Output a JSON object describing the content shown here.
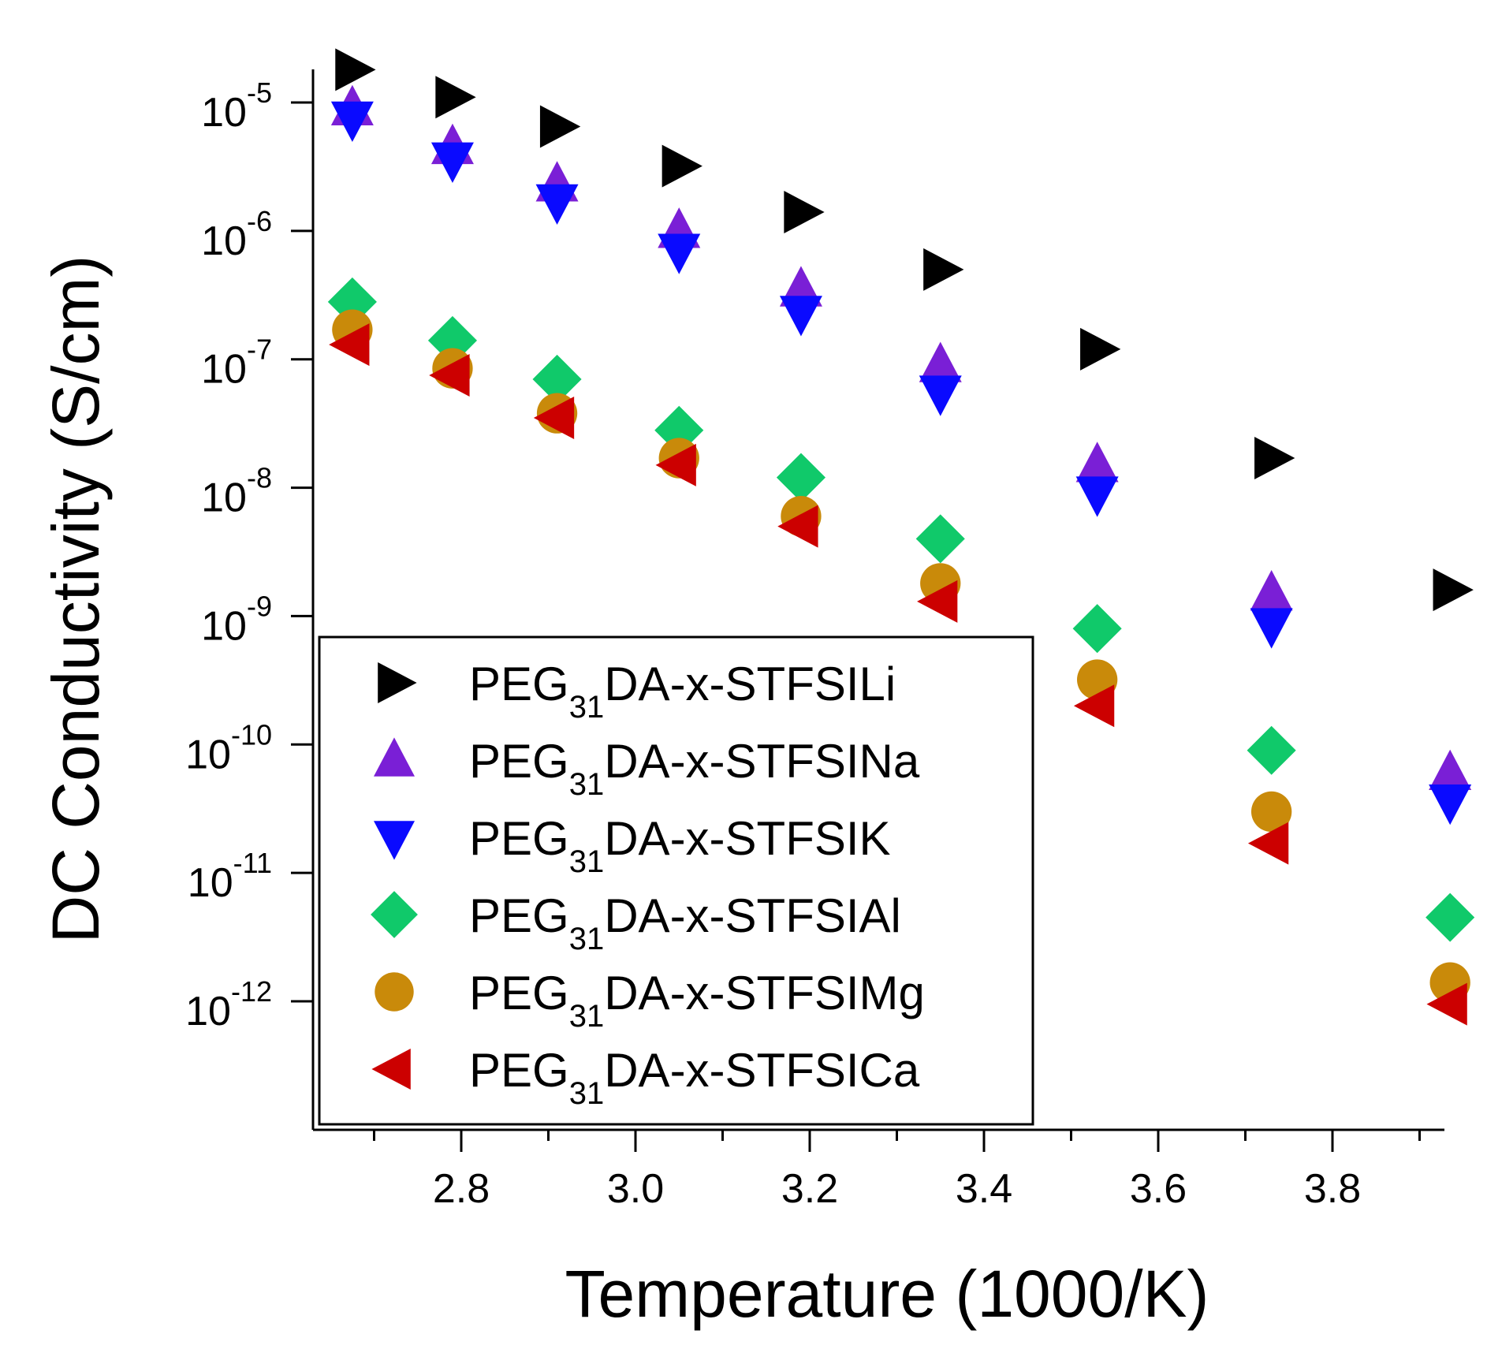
{
  "chart_data": {
    "type": "scatter",
    "xlabel": "Temperature (1000/K)",
    "ylabel": "DC Conductivity (S/cm)",
    "xlim": [
      2.65,
      3.95
    ],
    "ylim": [
      1e-13,
      2e-05
    ],
    "yscale": "log",
    "x_ticks": [
      {
        "value": 2.8,
        "label": "2.8"
      },
      {
        "value": 3.0,
        "label": "3.0"
      },
      {
        "value": 3.2,
        "label": "3.2"
      },
      {
        "value": 3.4,
        "label": "3.4"
      },
      {
        "value": 3.6,
        "label": "3.6"
      },
      {
        "value": 3.8,
        "label": "3.8"
      }
    ],
    "y_ticks": [
      {
        "value": 1e-05,
        "base": "10",
        "exp": "-5"
      },
      {
        "value": 1e-06,
        "base": "10",
        "exp": "-6"
      },
      {
        "value": 1e-07,
        "base": "10",
        "exp": "-7"
      },
      {
        "value": 1e-08,
        "base": "10",
        "exp": "-8"
      },
      {
        "value": 1e-09,
        "base": "10",
        "exp": "-9"
      },
      {
        "value": 1e-10,
        "base": "10",
        "exp": "-10"
      },
      {
        "value": 1e-11,
        "base": "10",
        "exp": "-11"
      },
      {
        "value": 1e-12,
        "base": "10",
        "exp": "-12"
      }
    ],
    "grid": false,
    "legend": {
      "placement": "lower-left",
      "entries": [
        {
          "pre": "PEG",
          "sub": "31",
          "post": "DA-x-STFSILi"
        },
        {
          "pre": "PEG",
          "sub": "31",
          "post": "DA-x-STFSINa"
        },
        {
          "pre": "PEG",
          "sub": "31",
          "post": "DA-x-STFSIK"
        },
        {
          "pre": "PEG",
          "sub": "31",
          "post": "DA-x-STFSIAl"
        },
        {
          "pre": "PEG",
          "sub": "31",
          "post": "DA-x-STFSIMg"
        },
        {
          "pre": "PEG",
          "sub": "31",
          "post": "DA-x-STFSICa"
        }
      ]
    },
    "x": [
      2.675,
      2.79,
      2.91,
      3.05,
      3.19,
      3.35,
      3.53,
      3.73,
      3.935
    ],
    "series": [
      {
        "name": "PEG31DA-x-STFSILi",
        "marker": "triangle-right",
        "color": "#000000",
        "values": [
          1.8e-05,
          1.1e-05,
          6.5e-06,
          3.2e-06,
          1.4e-06,
          5e-07,
          1.2e-07,
          1.7e-08,
          1.6e-09
        ]
      },
      {
        "name": "PEG31DA-x-STFSINa",
        "marker": "triangle-up",
        "color": "#7a1fd6",
        "values": [
          9e-06,
          4.5e-06,
          2.3e-06,
          1e-06,
          3.5e-07,
          9e-08,
          1.5e-08,
          1.5e-09,
          6e-11
        ]
      },
      {
        "name": "PEG31DA-x-STFSIK",
        "marker": "triangle-down",
        "color": "#0a0aff",
        "values": [
          7.5e-06,
          3.6e-06,
          1.7e-06,
          7e-07,
          2.3e-07,
          5.5e-08,
          9e-09,
          8.5e-10,
          3.6e-11
        ]
      },
      {
        "name": "PEG31DA-x-STFSIAl",
        "marker": "diamond",
        "color": "#10c96a",
        "values": [
          2.8e-07,
          1.4e-07,
          7e-08,
          2.8e-08,
          1.2e-08,
          4e-09,
          8e-10,
          9e-11,
          4.5e-12
        ]
      },
      {
        "name": "PEG31DA-x-STFSIMg",
        "marker": "circle",
        "color": "#c98a0a",
        "values": [
          1.7e-07,
          8.5e-08,
          3.8e-08,
          1.7e-08,
          6e-09,
          1.8e-09,
          3.2e-10,
          3e-11,
          1.4e-12
        ]
      },
      {
        "name": "PEG31DA-x-STFSICa",
        "marker": "triangle-left",
        "color": "#cc0000",
        "values": [
          1.3e-07,
          7.5e-08,
          3.5e-08,
          1.5e-08,
          5e-09,
          1.3e-09,
          2e-10,
          1.7e-11,
          9.5e-13
        ]
      }
    ]
  }
}
